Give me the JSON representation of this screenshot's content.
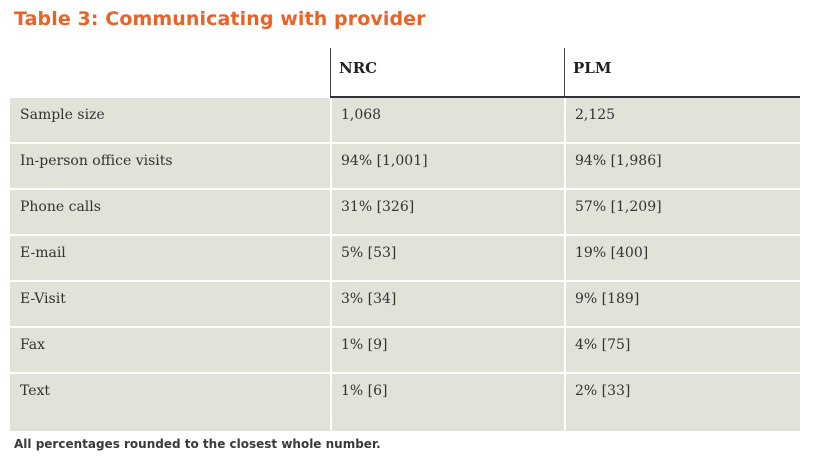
{
  "title": "Table 3: Communicating with provider",
  "table": {
    "columns": [
      "",
      "NRC",
      "PLM"
    ],
    "rows": [
      {
        "label": "Sample size",
        "nrc": "1,068",
        "plm": "2,125"
      },
      {
        "label": "In-person office visits",
        "nrc": "94% [1,001]",
        "plm": "94% [1,986]"
      },
      {
        "label": "Phone calls",
        "nrc": "31% [326]",
        "plm": "57% [1,209]"
      },
      {
        "label": "E-mail",
        "nrc": "5% [53]",
        "plm": "19% [400]"
      },
      {
        "label": "E-Visit",
        "nrc": "3% [34]",
        "plm": "9% [189]"
      },
      {
        "label": "Fax",
        "nrc": "1% [9]",
        "plm": "4% [75]"
      },
      {
        "label": "Text",
        "nrc": "1% [6]",
        "plm": "2% [33]"
      }
    ]
  },
  "footnote": "All percentages rounded to the closest whole number.",
  "colors": {
    "title": "#e8622a",
    "row_background": "#dfe3d8"
  }
}
